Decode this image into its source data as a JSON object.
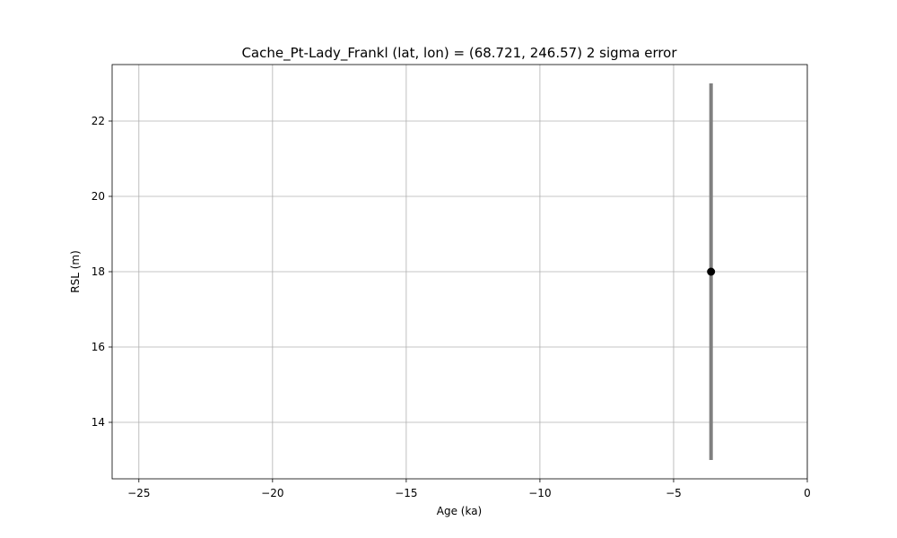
{
  "chart_data": {
    "type": "scatter",
    "title": "Cache_Pt-Lady_Frankl (lat, lon) = (68.721, 246.57)  2 sigma error",
    "xlabel": "Age (ka)",
    "ylabel": "RSL (m)",
    "xlim": [
      -26,
      0
    ],
    "ylim": [
      12.5,
      23.5
    ],
    "xticks": [
      -25,
      -20,
      -15,
      -10,
      -5,
      0
    ],
    "yticks": [
      14,
      16,
      18,
      20,
      22
    ],
    "grid": true,
    "points": [
      {
        "x": -3.6,
        "y": 18,
        "y_err_low": 13,
        "y_err_high": 23
      }
    ],
    "point_color": "#000000",
    "errorbar_color": "#808080"
  }
}
